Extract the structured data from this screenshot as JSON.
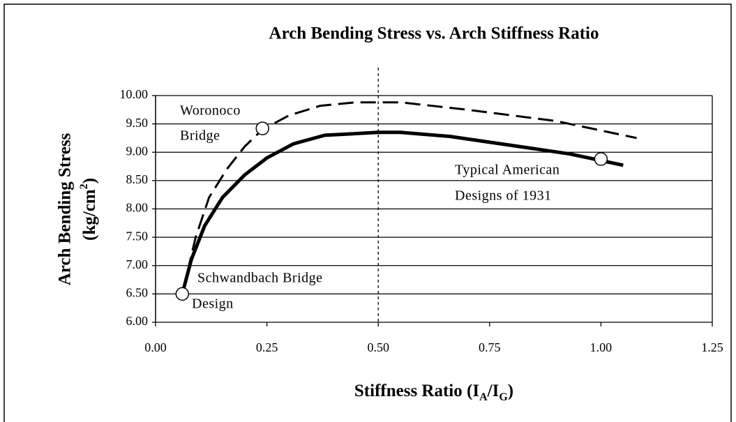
{
  "chart_data": {
    "type": "line",
    "title": "Arch Bending Stress vs. Arch Stiffness Ratio",
    "ylabel": {
      "line1": "Arch Bending Stress",
      "line2": [
        "(kg/cm",
        "2",
        ")"
      ]
    },
    "xlabel": [
      "Stiffness Ratio (I",
      "A",
      "/I",
      "G",
      ")"
    ],
    "xlim": [
      0,
      1.25
    ],
    "xticks": [
      {
        "value": 0,
        "label": "0.00"
      },
      {
        "value": 0.25,
        "label": "0.25"
      },
      {
        "value": 0.5,
        "label": "0.50"
      },
      {
        "value": 0.75,
        "label": "0.75"
      },
      {
        "value": 1,
        "label": "1.00"
      },
      {
        "value": 1.25,
        "label": "1.25"
      }
    ],
    "ylim": [
      6,
      10
    ],
    "yticks": [
      {
        "value": 6,
        "label": "6.00"
      },
      {
        "value": 6.5,
        "label": "6.50"
      },
      {
        "value": 7,
        "label": "7.00"
      },
      {
        "value": 7.5,
        "label": "7.50"
      },
      {
        "value": 8,
        "label": "8.00"
      },
      {
        "value": 8.5,
        "label": "8.50"
      },
      {
        "value": 9,
        "label": "9.00"
      },
      {
        "value": 9.5,
        "label": "9.50"
      },
      {
        "value": 10,
        "label": "10.00"
      }
    ],
    "grid": true,
    "vline": 0.5,
    "series": [
      {
        "color": "#000000",
        "style": "solid",
        "x": [
          0.06,
          0.08,
          0.11,
          0.15,
          0.2,
          0.25,
          0.31,
          0.38,
          0.5,
          0.55,
          0.66,
          0.8,
          0.93,
          1.05
        ],
        "values": [
          6.5,
          7.1,
          7.7,
          8.2,
          8.6,
          8.9,
          9.15,
          9.3,
          9.35,
          9.35,
          9.28,
          9.12,
          8.97,
          8.77
        ]
      },
      {
        "color": "#000000",
        "style": "dashed",
        "x": [
          0.06,
          0.09,
          0.12,
          0.16,
          0.2,
          0.24,
          0.3,
          0.37,
          0.45,
          0.55,
          0.7,
          0.9,
          1.08
        ],
        "values": [
          6.5,
          7.5,
          8.2,
          8.7,
          9.1,
          9.4,
          9.65,
          9.82,
          9.88,
          9.88,
          9.75,
          9.55,
          9.25
        ]
      }
    ],
    "markers": [
      {
        "x": 0.06,
        "y": 6.5
      },
      {
        "x": 0.24,
        "y": 9.42
      },
      {
        "x": 1.0,
        "y": 8.88
      }
    ],
    "annotations": [
      {
        "lines": [
          "Woronoco",
          "Bridge"
        ]
      },
      {
        "lines": [
          "Typical American",
          "Designs of 1931"
        ]
      },
      {
        "lines": [
          "Schwandbach Bridge",
          "Design"
        ]
      }
    ]
  }
}
